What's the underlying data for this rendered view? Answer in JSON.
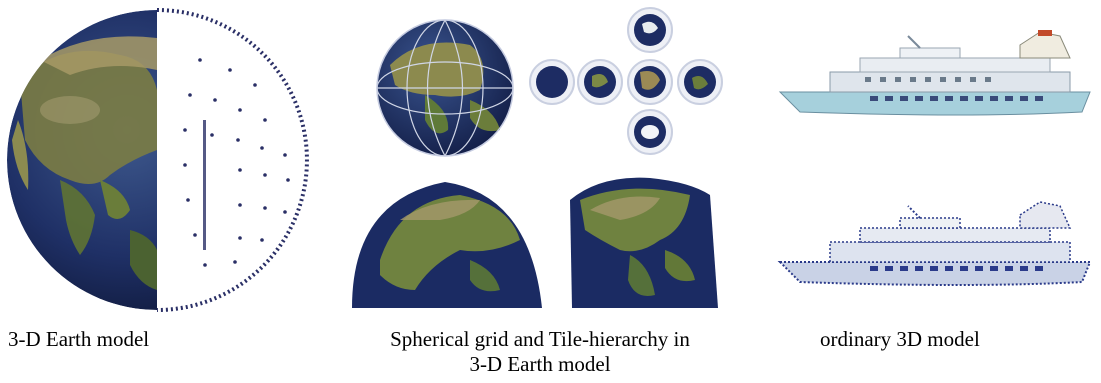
{
  "captions": {
    "left": "3-D Earth model",
    "middle_line1": "Spherical grid and Tile-hierarchy in",
    "middle_line2": "3-D Earth model",
    "right": "ordinary 3D model"
  },
  "colors": {
    "ocean": "#1c2a5e",
    "ocean_light": "#2e4a8a",
    "land": "#6a7a3a",
    "land_dry": "#a8925a",
    "grid": "#c9cfe0",
    "ship_hull": "#9ec9d8",
    "ship_body": "#d6dde6",
    "ship_dots": "#2a3a8a"
  }
}
